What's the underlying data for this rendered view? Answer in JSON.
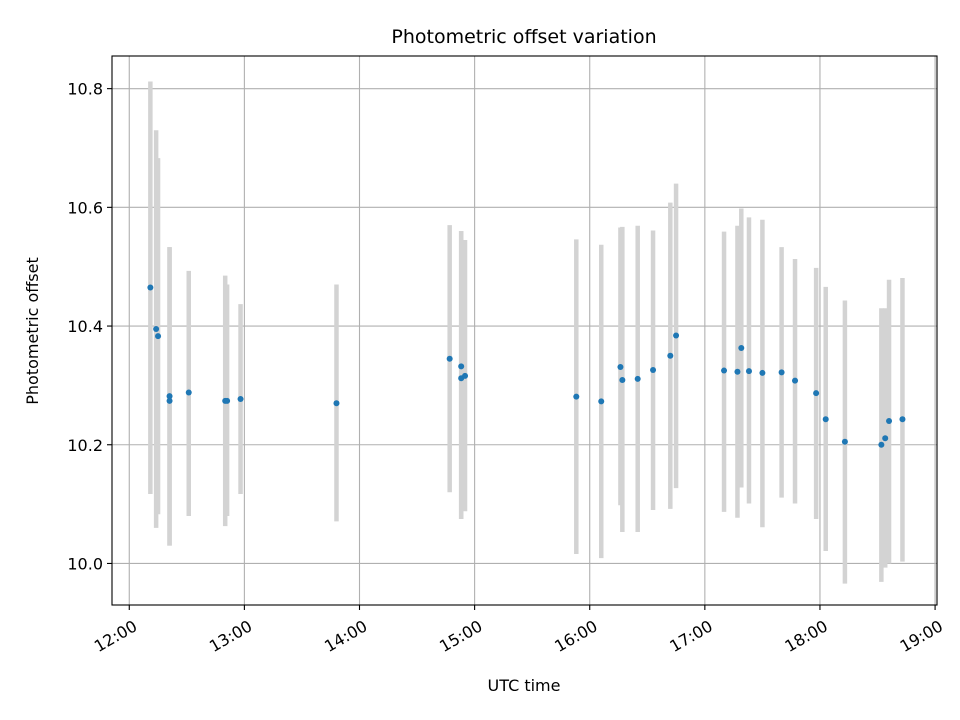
{
  "chart_data": {
    "type": "scatter",
    "title": "Photometric offset variation",
    "xlabel": "UTC time",
    "ylabel": "Photometric offset",
    "x_ticks": [
      "12:00",
      "13:00",
      "14:00",
      "15:00",
      "16:00",
      "17:00",
      "18:00",
      "19:00"
    ],
    "x_tick_values": [
      "12:00",
      "13:00",
      "14:00",
      "15:00",
      "16:00",
      "17:00",
      "18:00",
      "19:00"
    ],
    "y_ticks": [
      "10.0",
      "10.2",
      "10.4",
      "10.6",
      "10.8"
    ],
    "y_tick_values": [
      10.0,
      10.2,
      10.4,
      10.6,
      10.8
    ],
    "xlim": [
      "11:51",
      "19:01"
    ],
    "ylim": [
      9.93,
      10.855
    ],
    "grid": true,
    "marker_color": "#1f77b4",
    "errorbar_color": "#d3d3d3",
    "points": [
      {
        "t": "12:11",
        "y": 10.465,
        "lo": 10.117,
        "hi": 10.812
      },
      {
        "t": "12:14",
        "y": 10.395,
        "lo": 10.06,
        "hi": 10.73
      },
      {
        "t": "12:15",
        "y": 10.383,
        "lo": 10.083,
        "hi": 10.683
      },
      {
        "t": "12:21",
        "y": 10.274,
        "lo": 10.03,
        "hi": 10.533
      },
      {
        "t": "12:21",
        "y": 10.282,
        "lo": 10.03,
        "hi": 10.533
      },
      {
        "t": "12:31",
        "y": 10.288,
        "lo": 10.08,
        "hi": 10.493
      },
      {
        "t": "12:50",
        "y": 10.274,
        "lo": 10.063,
        "hi": 10.485
      },
      {
        "t": "12:51",
        "y": 10.274,
        "lo": 10.08,
        "hi": 10.47
      },
      {
        "t": "12:58",
        "y": 10.277,
        "lo": 10.117,
        "hi": 10.437
      },
      {
        "t": "13:48",
        "y": 10.27,
        "lo": 10.071,
        "hi": 10.47
      },
      {
        "t": "14:47",
        "y": 10.345,
        "lo": 10.12,
        "hi": 10.57
      },
      {
        "t": "14:53",
        "y": 10.312,
        "lo": 10.075,
        "hi": 10.56
      },
      {
        "t": "14:53",
        "y": 10.332,
        "lo": 10.075,
        "hi": 10.56
      },
      {
        "t": "14:55",
        "y": 10.316,
        "lo": 10.088,
        "hi": 10.545
      },
      {
        "t": "15:53",
        "y": 10.281,
        "lo": 10.016,
        "hi": 10.546
      },
      {
        "t": "16:06",
        "y": 10.273,
        "lo": 10.009,
        "hi": 10.537
      },
      {
        "t": "16:16",
        "y": 10.331,
        "lo": 10.098,
        "hi": 10.566
      },
      {
        "t": "16:17",
        "y": 10.309,
        "lo": 10.053,
        "hi": 10.567
      },
      {
        "t": "16:25",
        "y": 10.311,
        "lo": 10.053,
        "hi": 10.569
      },
      {
        "t": "16:33",
        "y": 10.326,
        "lo": 10.09,
        "hi": 10.561
      },
      {
        "t": "16:42",
        "y": 10.35,
        "lo": 10.092,
        "hi": 10.608
      },
      {
        "t": "16:45",
        "y": 10.384,
        "lo": 10.127,
        "hi": 10.64
      },
      {
        "t": "17:10",
        "y": 10.325,
        "lo": 10.087,
        "hi": 10.559
      },
      {
        "t": "17:17",
        "y": 10.323,
        "lo": 10.077,
        "hi": 10.569
      },
      {
        "t": "17:19",
        "y": 10.363,
        "lo": 10.128,
        "hi": 10.598
      },
      {
        "t": "17:23",
        "y": 10.324,
        "lo": 10.101,
        "hi": 10.583
      },
      {
        "t": "17:30",
        "y": 10.321,
        "lo": 10.061,
        "hi": 10.579
      },
      {
        "t": "17:40",
        "y": 10.322,
        "lo": 10.111,
        "hi": 10.533
      },
      {
        "t": "17:47",
        "y": 10.308,
        "lo": 10.101,
        "hi": 10.513
      },
      {
        "t": "17:58",
        "y": 10.287,
        "lo": 10.075,
        "hi": 10.498
      },
      {
        "t": "18:03",
        "y": 10.243,
        "lo": 10.021,
        "hi": 10.466
      },
      {
        "t": "18:13",
        "y": 10.205,
        "lo": 9.966,
        "hi": 10.443
      },
      {
        "t": "18:32",
        "y": 10.2,
        "lo": 9.969,
        "hi": 10.43
      },
      {
        "t": "18:34",
        "y": 10.211,
        "lo": 9.993,
        "hi": 10.43
      },
      {
        "t": "18:36",
        "y": 10.24,
        "lo": 10.0,
        "hi": 10.478
      },
      {
        "t": "18:43",
        "y": 10.243,
        "lo": 10.003,
        "hi": 10.481
      }
    ]
  }
}
